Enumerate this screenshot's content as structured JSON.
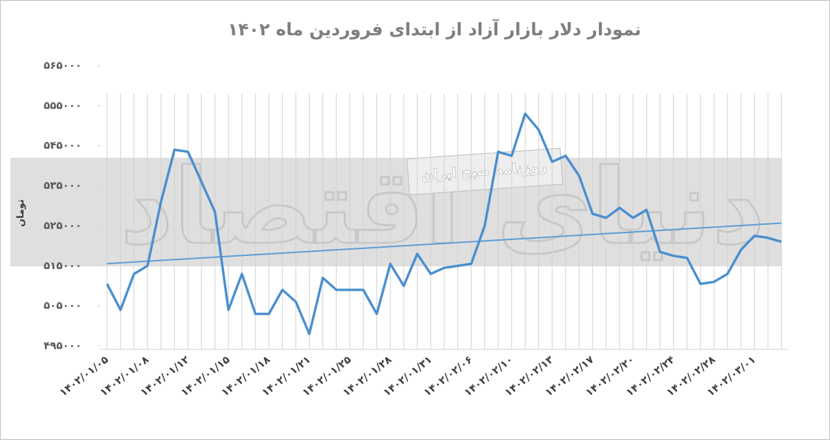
{
  "chart_data": {
    "type": "line",
    "title": "نمودار دلار بازار آزاد از ابتدای فروردین ماه ۱۴۰۲",
    "y_label": "تومان",
    "watermarks": [
      "دنیای اقتصاد",
      "روزنامه صبح ایران"
    ],
    "categories": [
      "۱۴۰۲/۰۱/۰۵",
      null,
      null,
      "۱۴۰۲/۰۱/۰۸",
      null,
      null,
      "۱۴۰۲/۰۱/۱۲",
      null,
      null,
      "۱۴۰۲/۰۱/۱۵",
      null,
      null,
      "۱۴۰۲/۰۱/۱۸",
      null,
      null,
      "۱۴۰۲/۰۱/۲۱",
      null,
      null,
      "۱۴۰۲/۰۱/۲۵",
      null,
      null,
      "۱۴۰۲/۰۱/۲۸",
      null,
      null,
      "۱۴۰۲/۰۱/۳۱",
      null,
      null,
      "۱۴۰۲/۰۲/۰۶",
      null,
      null,
      "۱۴۰۲/۰۲/۱۰",
      null,
      null,
      "۱۴۰۲/۰۲/۱۳",
      null,
      null,
      "۱۴۰۲/۰۲/۱۷",
      null,
      null,
      "۱۴۰۲/۰۲/۲۰",
      null,
      null,
      "۱۴۰۲/۰۲/۲۴",
      null,
      null,
      "۱۴۰۲/۰۲/۲۸",
      null,
      null,
      "۱۴۰۲/۰۳/۰۱",
      null,
      null
    ],
    "values": [
      510500,
      504000,
      513000,
      515000,
      531000,
      544000,
      543500,
      536000,
      528500,
      504000,
      513000,
      503000,
      503000,
      509000,
      506000,
      498000,
      512000,
      509000,
      509000,
      509000,
      503000,
      515500,
      510000,
      518000,
      513000,
      514500,
      515000,
      515500,
      525000,
      543500,
      542500,
      553000,
      549000,
      541000,
      542500,
      537500,
      528000,
      527000,
      529500,
      527000,
      529000,
      518500,
      517500,
      517000,
      510500,
      511000,
      513000,
      519000,
      522500,
      522000,
      521000
    ],
    "color": "#4a8fcf",
    "trendline": true,
    "trendline_color": "#5b9bd5",
    "grid": true,
    "ylim": [
      495000,
      565000
    ],
    "yticks": [
      {
        "value": 495000,
        "label": "۴۹۵۰۰۰"
      },
      {
        "value": 505000,
        "label": "۵۰۵۰۰۰"
      },
      {
        "value": 515000,
        "label": "۵۱۵۰۰۰"
      },
      {
        "value": 525000,
        "label": "۵۲۵۰۰۰"
      },
      {
        "value": 535000,
        "label": "۵۳۵۰۰۰"
      },
      {
        "value": 545000,
        "label": "۵۴۵۰۰۰"
      },
      {
        "value": 555000,
        "label": "۵۵۵۰۰۰"
      },
      {
        "value": 565000,
        "label": "۵۶۵۰۰۰"
      }
    ]
  }
}
